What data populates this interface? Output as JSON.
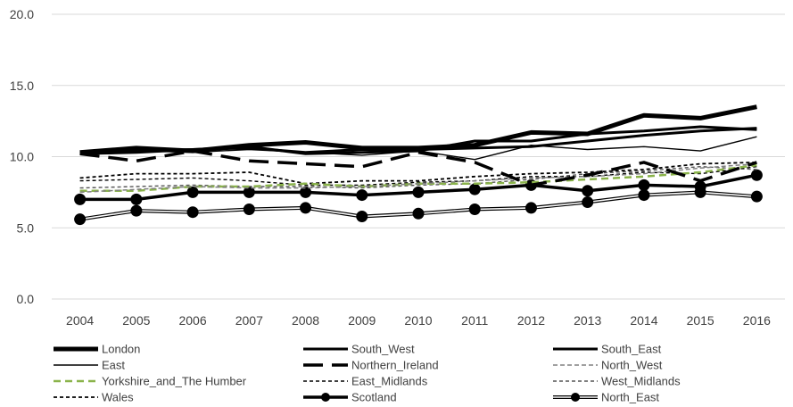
{
  "chart_data": {
    "type": "line",
    "title": "",
    "xlabel": "",
    "ylabel": "",
    "ylim": [
      0,
      20
    ],
    "yticks": [
      "0.0",
      "5.0",
      "10.0",
      "15.0",
      "20.0"
    ],
    "categories": [
      "2004",
      "2005",
      "2006",
      "2007",
      "2008",
      "2009",
      "2010",
      "2011",
      "2012",
      "2013",
      "2014",
      "2015",
      "2016"
    ],
    "grid": true,
    "legend_position": "bottom",
    "series": [
      {
        "name": "London",
        "color": "#000000",
        "style": "thick",
        "values": [
          10.3,
          10.6,
          10.4,
          10.8,
          11.0,
          10.6,
          10.6,
          10.8,
          11.7,
          11.6,
          12.9,
          12.7,
          13.5
        ]
      },
      {
        "name": "South_West",
        "color": "#000000",
        "style": "medium",
        "values": [
          10.2,
          10.3,
          10.5,
          10.6,
          10.3,
          10.5,
          10.5,
          10.6,
          10.7,
          11.1,
          11.5,
          11.8,
          12.0
        ]
      },
      {
        "name": "South_East",
        "color": "#000000",
        "style": "medium",
        "values": [
          10.3,
          10.4,
          10.5,
          10.7,
          10.2,
          10.3,
          10.4,
          11.1,
          11.1,
          11.6,
          11.8,
          12.1,
          11.9
        ]
      },
      {
        "name": "East",
        "color": "#000000",
        "style": "thin",
        "values": [
          10.2,
          10.4,
          10.3,
          10.5,
          10.3,
          10.1,
          10.4,
          9.8,
          10.8,
          10.5,
          10.7,
          10.4,
          11.4
        ]
      },
      {
        "name": "Northern_Ireland",
        "color": "#000000",
        "style": "dashdot",
        "values": [
          10.2,
          9.7,
          10.4,
          9.7,
          9.5,
          9.3,
          10.3,
          9.6,
          8.0,
          8.7,
          9.6,
          8.3,
          9.6
        ]
      },
      {
        "name": "North_West",
        "color": "#808080",
        "style": "dashgray",
        "values": [
          7.5,
          7.7,
          7.9,
          7.8,
          7.8,
          7.9,
          8.1,
          8.3,
          8.5,
          8.6,
          8.8,
          9.2,
          9.5
        ]
      },
      {
        "name": "Yorkshire_and_The Humber",
        "color": "#8ab34a",
        "style": "dashgreen",
        "values": [
          7.6,
          7.6,
          7.9,
          7.9,
          8.1,
          7.9,
          8.1,
          8.1,
          8.2,
          8.4,
          8.6,
          8.9,
          9.4
        ]
      },
      {
        "name": "East_Midlands",
        "color": "#000000",
        "style": "dashthin",
        "values": [
          8.3,
          8.4,
          8.5,
          8.3,
          8.0,
          8.0,
          8.2,
          8.3,
          8.6,
          8.6,
          8.9,
          8.8,
          9.3
        ]
      },
      {
        "name": "West_Midlands",
        "color": "#555555",
        "style": "dashthin",
        "values": [
          7.8,
          7.9,
          8.0,
          7.9,
          7.9,
          7.8,
          8.0,
          8.1,
          8.4,
          8.8,
          9.0,
          9.3,
          9.1
        ]
      },
      {
        "name": "Wales",
        "color": "#000000",
        "style": "dashblack",
        "values": [
          8.5,
          8.8,
          8.8,
          8.9,
          8.1,
          8.3,
          8.3,
          8.6,
          8.8,
          8.9,
          9.1,
          9.5,
          9.6
        ]
      },
      {
        "name": "Scotland",
        "color": "#000000",
        "style": "marker",
        "values": [
          7.0,
          7.0,
          7.5,
          7.5,
          7.5,
          7.3,
          7.5,
          7.7,
          8.0,
          7.6,
          8.0,
          7.9,
          8.7
        ]
      },
      {
        "name": "North_East",
        "color": "#000000",
        "style": "doublemarker",
        "values": [
          5.6,
          6.2,
          6.1,
          6.3,
          6.4,
          5.8,
          6.0,
          6.3,
          6.4,
          6.8,
          7.3,
          7.5,
          7.2
        ]
      }
    ]
  }
}
